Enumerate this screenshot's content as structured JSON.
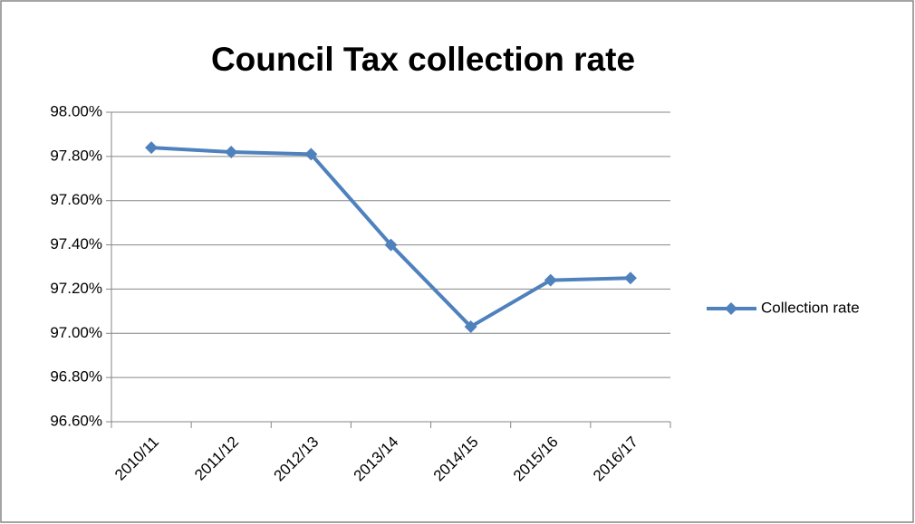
{
  "chart_data": {
    "type": "line",
    "title": "Council Tax collection rate",
    "categories": [
      "2010/11",
      "2011/12",
      "2012/13",
      "2013/14",
      "2014/15",
      "2015/16",
      "2016/17"
    ],
    "series": [
      {
        "name": "Collection rate",
        "color": "#4f81bd",
        "values": [
          97.84,
          97.82,
          97.81,
          97.4,
          97.03,
          97.24,
          97.25
        ]
      }
    ],
    "ylim": [
      96.6,
      98.0
    ],
    "yticks": [
      {
        "value": 96.6,
        "label": "96.60%"
      },
      {
        "value": 96.8,
        "label": "96.80%"
      },
      {
        "value": 97.0,
        "label": "97.00%"
      },
      {
        "value": 97.2,
        "label": "97.20%"
      },
      {
        "value": 97.4,
        "label": "97.40%"
      },
      {
        "value": 97.6,
        "label": "97.60%"
      },
      {
        "value": 97.8,
        "label": "97.80%"
      },
      {
        "value": 98.0,
        "label": "98.00%"
      }
    ],
    "grid": true,
    "legend": "right"
  }
}
